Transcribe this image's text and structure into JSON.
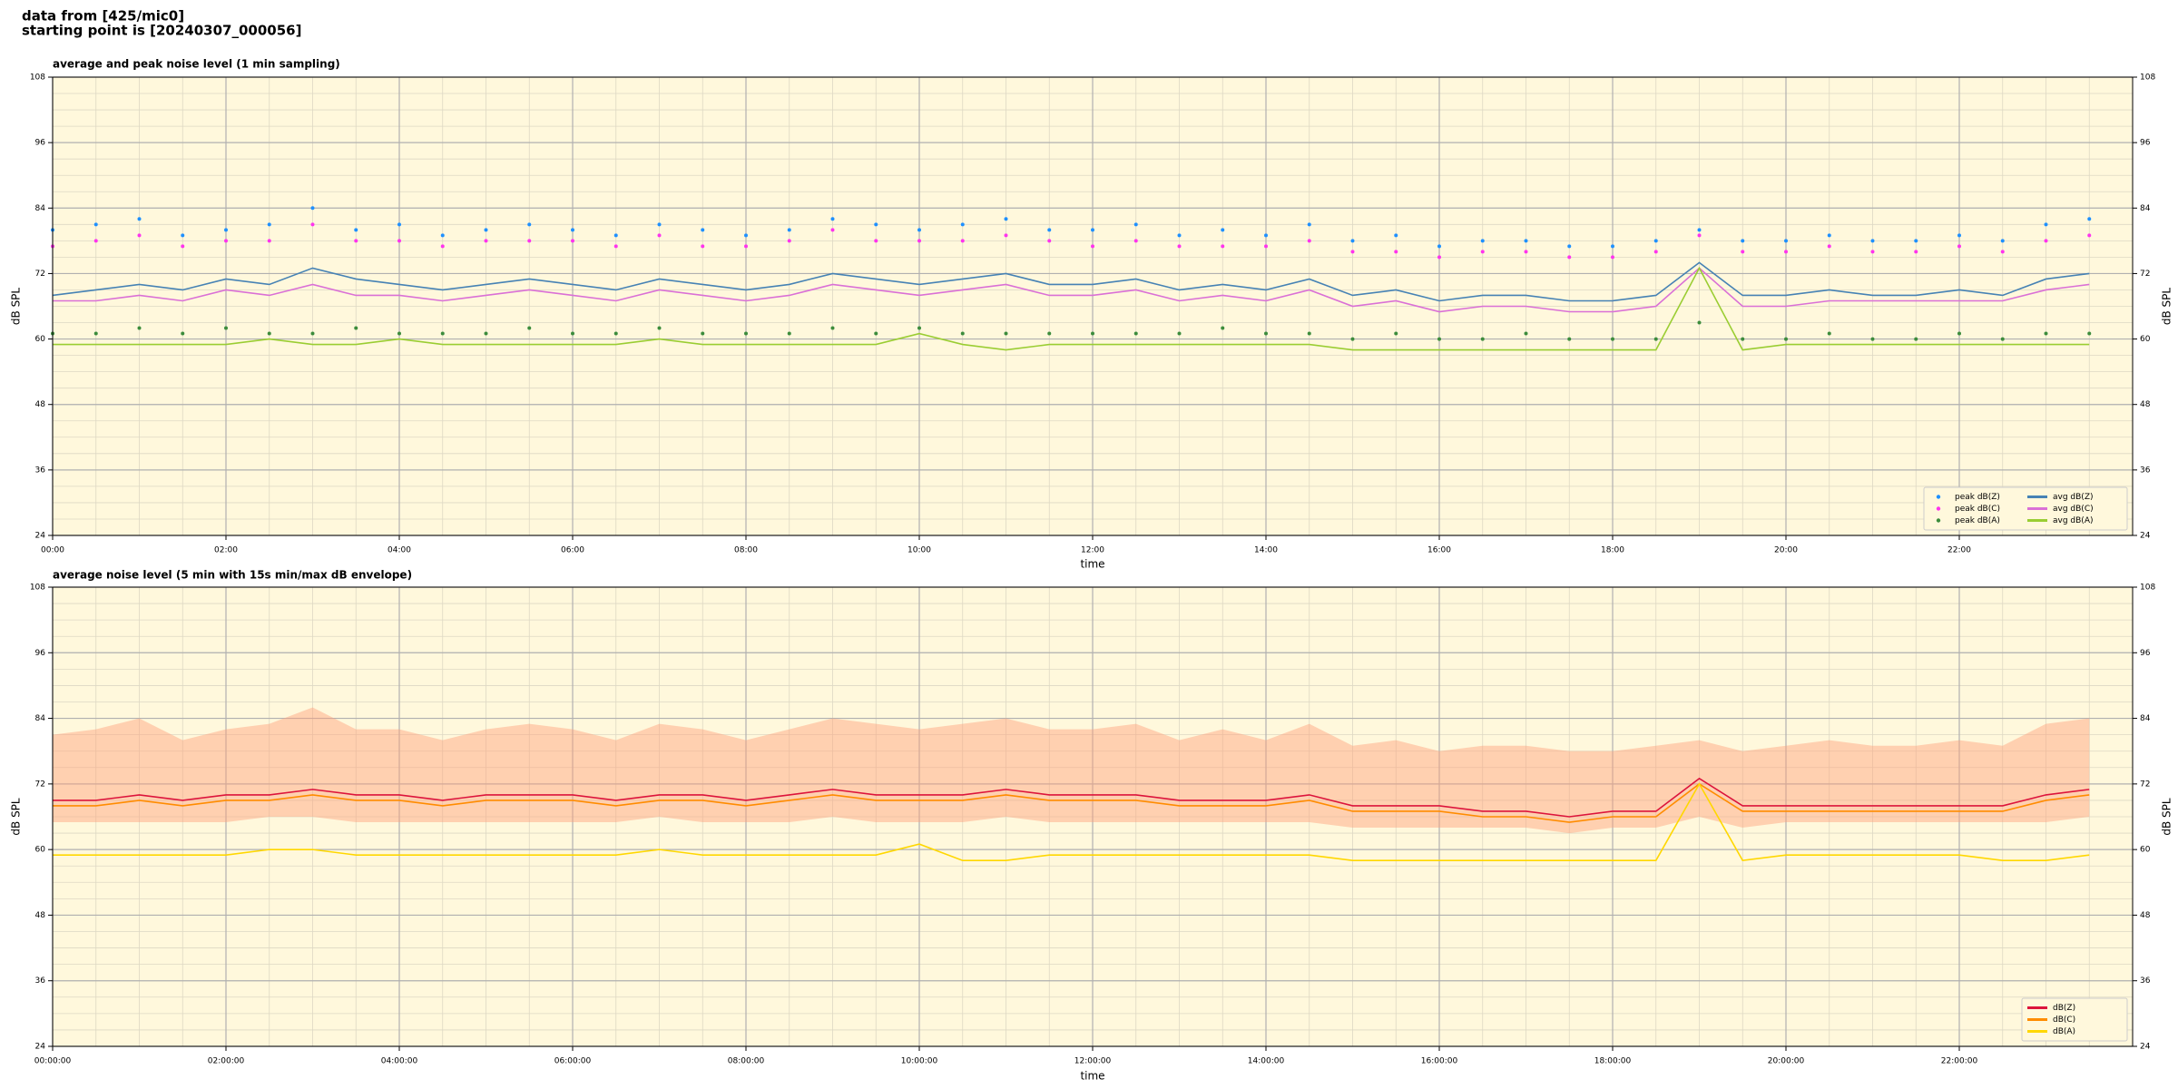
{
  "header": {
    "line1": "data from [425/mic0]",
    "line2": "starting point is [20240307_000056]"
  },
  "chart_data": [
    {
      "type": "line",
      "title": "average and peak noise level (1 min sampling)",
      "xlabel": "time",
      "ylabel": "dB SPL",
      "background": "#fff8dc",
      "grid": true,
      "minor_grid": true,
      "right_tick_labels": true,
      "legend": "lower right",
      "legend_columns": 2,
      "xlim": [
        0,
        24
      ],
      "xticks": [
        {
          "value": 0,
          "label": "00:00"
        },
        {
          "value": 2,
          "label": "02:00"
        },
        {
          "value": 4,
          "label": "04:00"
        },
        {
          "value": 6,
          "label": "06:00"
        },
        {
          "value": 8,
          "label": "08:00"
        },
        {
          "value": 10,
          "label": "10:00"
        },
        {
          "value": 12,
          "label": "12:00"
        },
        {
          "value": 14,
          "label": "14:00"
        },
        {
          "value": 16,
          "label": "16:00"
        },
        {
          "value": 18,
          "label": "18:00"
        },
        {
          "value": 20,
          "label": "20:00"
        },
        {
          "value": 22,
          "label": "22:00"
        }
      ],
      "ylim": [
        24,
        108
      ],
      "yticks": [
        24,
        36,
        48,
        60,
        72,
        84,
        96,
        108
      ],
      "x": [
        0,
        0.5,
        1,
        1.5,
        2,
        2.5,
        3,
        3.5,
        4,
        4.5,
        5,
        5.5,
        6,
        6.5,
        7,
        7.5,
        8,
        8.5,
        9,
        9.5,
        10,
        10.5,
        11,
        11.5,
        12,
        12.5,
        13,
        13.5,
        14,
        14.5,
        15,
        15.5,
        16,
        16.5,
        17,
        17.5,
        18,
        18.5,
        19,
        19.5,
        20,
        20.5,
        21,
        21.5,
        22,
        22.5,
        23,
        23.5
      ],
      "series": [
        {
          "name": "peak dB(Z)",
          "mode": "markers",
          "color": "#1e90ff",
          "values": [
            80,
            81,
            82,
            79,
            80,
            81,
            84,
            80,
            81,
            79,
            80,
            81,
            80,
            79,
            81,
            80,
            79,
            80,
            82,
            81,
            80,
            81,
            82,
            80,
            80,
            81,
            79,
            80,
            79,
            81,
            78,
            79,
            77,
            78,
            78,
            77,
            77,
            78,
            80,
            78,
            78,
            79,
            78,
            78,
            79,
            78,
            81,
            82
          ]
        },
        {
          "name": "peak dB(C)",
          "mode": "markers",
          "color": "#ff33ee",
          "values": [
            77,
            78,
            79,
            77,
            78,
            78,
            81,
            78,
            78,
            77,
            78,
            78,
            78,
            77,
            79,
            77,
            77,
            78,
            80,
            78,
            78,
            78,
            79,
            78,
            77,
            78,
            77,
            77,
            77,
            78,
            76,
            76,
            75,
            76,
            76,
            75,
            75,
            76,
            79,
            76,
            76,
            77,
            76,
            76,
            77,
            76,
            78,
            79
          ]
        },
        {
          "name": "peak dB(A)",
          "mode": "markers",
          "color": "#3c8c3c",
          "values": [
            61,
            61,
            62,
            61,
            62,
            61,
            61,
            62,
            61,
            61,
            61,
            62,
            61,
            61,
            62,
            61,
            61,
            61,
            62,
            61,
            62,
            61,
            61,
            61,
            61,
            61,
            61,
            62,
            61,
            61,
            60,
            61,
            60,
            60,
            61,
            60,
            60,
            60,
            63,
            60,
            60,
            61,
            60,
            60,
            61,
            60,
            61,
            61
          ]
        },
        {
          "name": "avg dB(Z)",
          "mode": "line",
          "color": "#4682b4",
          "values": [
            68,
            69,
            70,
            69,
            71,
            70,
            73,
            71,
            70,
            69,
            70,
            71,
            70,
            69,
            71,
            70,
            69,
            70,
            72,
            71,
            70,
            71,
            72,
            70,
            70,
            71,
            69,
            70,
            69,
            71,
            68,
            69,
            67,
            68,
            68,
            67,
            67,
            68,
            74,
            68,
            68,
            69,
            68,
            68,
            69,
            68,
            71,
            72
          ]
        },
        {
          "name": "avg dB(C)",
          "mode": "line",
          "color": "#da70d6",
          "values": [
            67,
            67,
            68,
            67,
            69,
            68,
            70,
            68,
            68,
            67,
            68,
            69,
            68,
            67,
            69,
            68,
            67,
            68,
            70,
            69,
            68,
            69,
            70,
            68,
            68,
            69,
            67,
            68,
            67,
            69,
            66,
            67,
            65,
            66,
            66,
            65,
            65,
            66,
            73,
            66,
            66,
            67,
            67,
            67,
            67,
            67,
            69,
            70
          ]
        },
        {
          "name": "avg dB(A)",
          "mode": "line",
          "color": "#9acd32",
          "values": [
            59,
            59,
            59,
            59,
            59,
            60,
            59,
            59,
            60,
            59,
            59,
            59,
            59,
            59,
            60,
            59,
            59,
            59,
            59,
            59,
            61,
            59,
            58,
            59,
            59,
            59,
            59,
            59,
            59,
            59,
            58,
            58,
            58,
            58,
            58,
            58,
            58,
            58,
            73,
            58,
            59,
            59,
            59,
            59,
            59,
            59,
            59,
            59
          ]
        }
      ]
    },
    {
      "type": "line",
      "title": "average noise level (5 min with 15s min/max dB envelope)",
      "xlabel": "time",
      "ylabel": "dB SPL",
      "background": "#fff8dc",
      "grid": true,
      "minor_grid": true,
      "right_tick_labels": true,
      "legend": "lower right",
      "legend_columns": 1,
      "xlim": [
        0,
        24
      ],
      "xticks": [
        {
          "value": 0,
          "label": "00:00:00"
        },
        {
          "value": 2,
          "label": "02:00:00"
        },
        {
          "value": 4,
          "label": "04:00:00"
        },
        {
          "value": 6,
          "label": "06:00:00"
        },
        {
          "value": 8,
          "label": "08:00:00"
        },
        {
          "value": 10,
          "label": "10:00:00"
        },
        {
          "value": 12,
          "label": "12:00:00"
        },
        {
          "value": 14,
          "label": "14:00:00"
        },
        {
          "value": 16,
          "label": "16:00:00"
        },
        {
          "value": 18,
          "label": "18:00:00"
        },
        {
          "value": 20,
          "label": "20:00:00"
        },
        {
          "value": 22,
          "label": "22:00:00"
        }
      ],
      "ylim": [
        24,
        108
      ],
      "yticks": [
        24,
        36,
        48,
        60,
        72,
        84,
        96,
        108
      ],
      "x": [
        0,
        0.5,
        1,
        1.5,
        2,
        2.5,
        3,
        3.5,
        4,
        4.5,
        5,
        5.5,
        6,
        6.5,
        7,
        7.5,
        8,
        8.5,
        9,
        9.5,
        10,
        10.5,
        11,
        11.5,
        12,
        12.5,
        13,
        13.5,
        14,
        14.5,
        15,
        15.5,
        16,
        16.5,
        17,
        17.5,
        18,
        18.5,
        19,
        19.5,
        20,
        20.5,
        21,
        21.5,
        22,
        22.5,
        23,
        23.5
      ],
      "envelope": {
        "color": "#ffa07a",
        "min": [
          65,
          65,
          65,
          65,
          65,
          66,
          66,
          65,
          65,
          65,
          65,
          65,
          65,
          65,
          66,
          65,
          65,
          65,
          66,
          65,
          65,
          65,
          66,
          65,
          65,
          65,
          65,
          65,
          65,
          65,
          64,
          64,
          64,
          64,
          64,
          63,
          64,
          64,
          66,
          64,
          65,
          65,
          65,
          65,
          65,
          65,
          65,
          66
        ],
        "max": [
          81,
          82,
          84,
          80,
          82,
          83,
          86,
          82,
          82,
          80,
          82,
          83,
          82,
          80,
          83,
          82,
          80,
          82,
          84,
          83,
          82,
          83,
          84,
          82,
          82,
          83,
          80,
          82,
          80,
          83,
          79,
          80,
          78,
          79,
          79,
          78,
          78,
          79,
          80,
          78,
          79,
          80,
          79,
          79,
          80,
          79,
          83,
          84
        ]
      },
      "series": [
        {
          "name": "dB(Z)",
          "mode": "line",
          "color": "#dc143c",
          "values": [
            69,
            69,
            70,
            69,
            70,
            70,
            71,
            70,
            70,
            69,
            70,
            70,
            70,
            69,
            70,
            70,
            69,
            70,
            71,
            70,
            70,
            70,
            71,
            70,
            70,
            70,
            69,
            69,
            69,
            70,
            68,
            68,
            68,
            67,
            67,
            66,
            67,
            67,
            73,
            68,
            68,
            68,
            68,
            68,
            68,
            68,
            70,
            71
          ]
        },
        {
          "name": "dB(C)",
          "mode": "line",
          "color": "#ff8c00",
          "values": [
            68,
            68,
            69,
            68,
            69,
            69,
            70,
            69,
            69,
            68,
            69,
            69,
            69,
            68,
            69,
            69,
            68,
            69,
            70,
            69,
            69,
            69,
            70,
            69,
            69,
            69,
            68,
            68,
            68,
            69,
            67,
            67,
            67,
            66,
            66,
            65,
            66,
            66,
            72,
            67,
            67,
            67,
            67,
            67,
            67,
            67,
            69,
            70
          ]
        },
        {
          "name": "dB(A)",
          "mode": "line",
          "color": "#ffd700",
          "values": [
            59,
            59,
            59,
            59,
            59,
            60,
            60,
            59,
            59,
            59,
            59,
            59,
            59,
            59,
            60,
            59,
            59,
            59,
            59,
            59,
            61,
            58,
            58,
            59,
            59,
            59,
            59,
            59,
            59,
            59,
            58,
            58,
            58,
            58,
            58,
            58,
            58,
            58,
            72,
            58,
            59,
            59,
            59,
            59,
            59,
            58,
            58,
            59
          ]
        }
      ]
    }
  ]
}
